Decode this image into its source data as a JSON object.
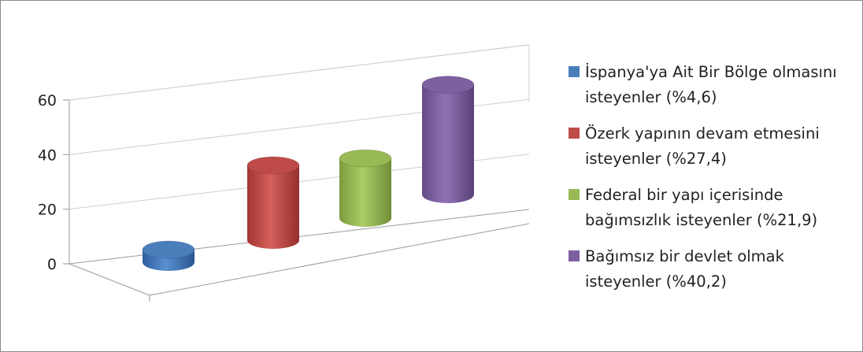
{
  "colors": {
    "series": [
      "#4a7ebb",
      "#be4b48",
      "#98b954",
      "#7d60a0"
    ],
    "gridline": "#cfcfcf",
    "axis": "#9a9a9a",
    "border": "#8c8c8c"
  },
  "chart_data": {
    "type": "bar",
    "style": "3d-cylinder",
    "title": "",
    "xlabel": "",
    "ylabel": "",
    "ylim": [
      0,
      60
    ],
    "yticks": [
      0,
      20,
      40,
      60
    ],
    "grid": true,
    "legend_position": "right",
    "categories": [
      "İspanya'ya Ait Bir Bölge olmasını isteyenler (%4,6)",
      "Özerk yapının devam etmesini isteyenler (%27,4)",
      "Federal bir yapı içerisinde bağımsızlık isteyenler (%21,9)",
      "Bağımsız bir devlet olmak isteyenler (%40,2)"
    ],
    "values": [
      4.6,
      27.4,
      21.9,
      40.2
    ]
  }
}
